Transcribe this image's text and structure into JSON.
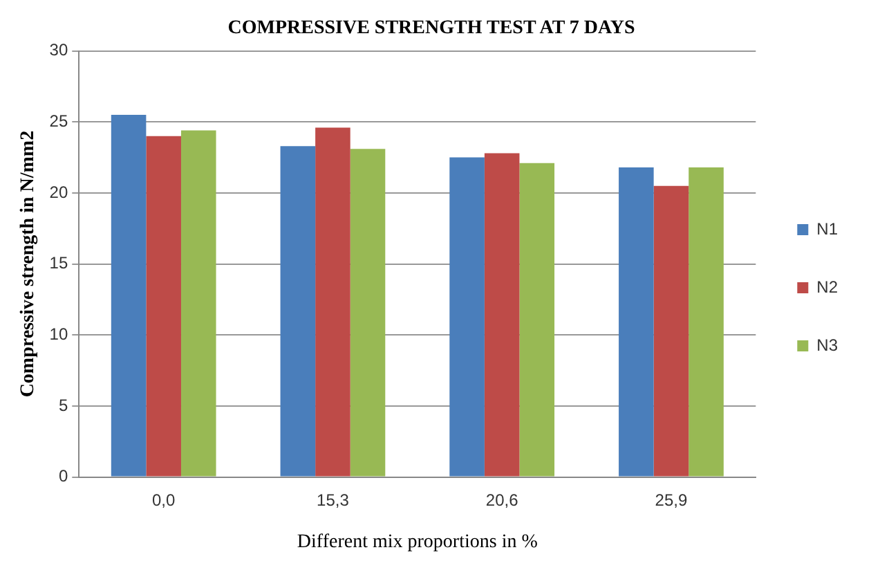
{
  "chart_data": {
    "type": "bar",
    "title": "COMPRESSIVE STRENGTH TEST AT 7 DAYS",
    "xlabel": "Different mix proportions in %",
    "ylabel": "Compressive strength in N/mm2",
    "categories": [
      "0,0",
      "15,3",
      "20,6",
      "25,9"
    ],
    "series": [
      {
        "name": "N1",
        "color": "#4a7ebb",
        "values": [
          25.5,
          23.3,
          22.5,
          21.8
        ]
      },
      {
        "name": "N2",
        "color": "#be4b48",
        "values": [
          24.0,
          24.6,
          22.8,
          20.5
        ]
      },
      {
        "name": "N3",
        "color": "#98b954",
        "values": [
          24.4,
          23.1,
          22.1,
          21.8
        ]
      }
    ],
    "ylim": [
      0,
      30
    ],
    "yticks": [
      0,
      5,
      10,
      15,
      20,
      25,
      30
    ],
    "grid": "y",
    "legend": "right"
  }
}
